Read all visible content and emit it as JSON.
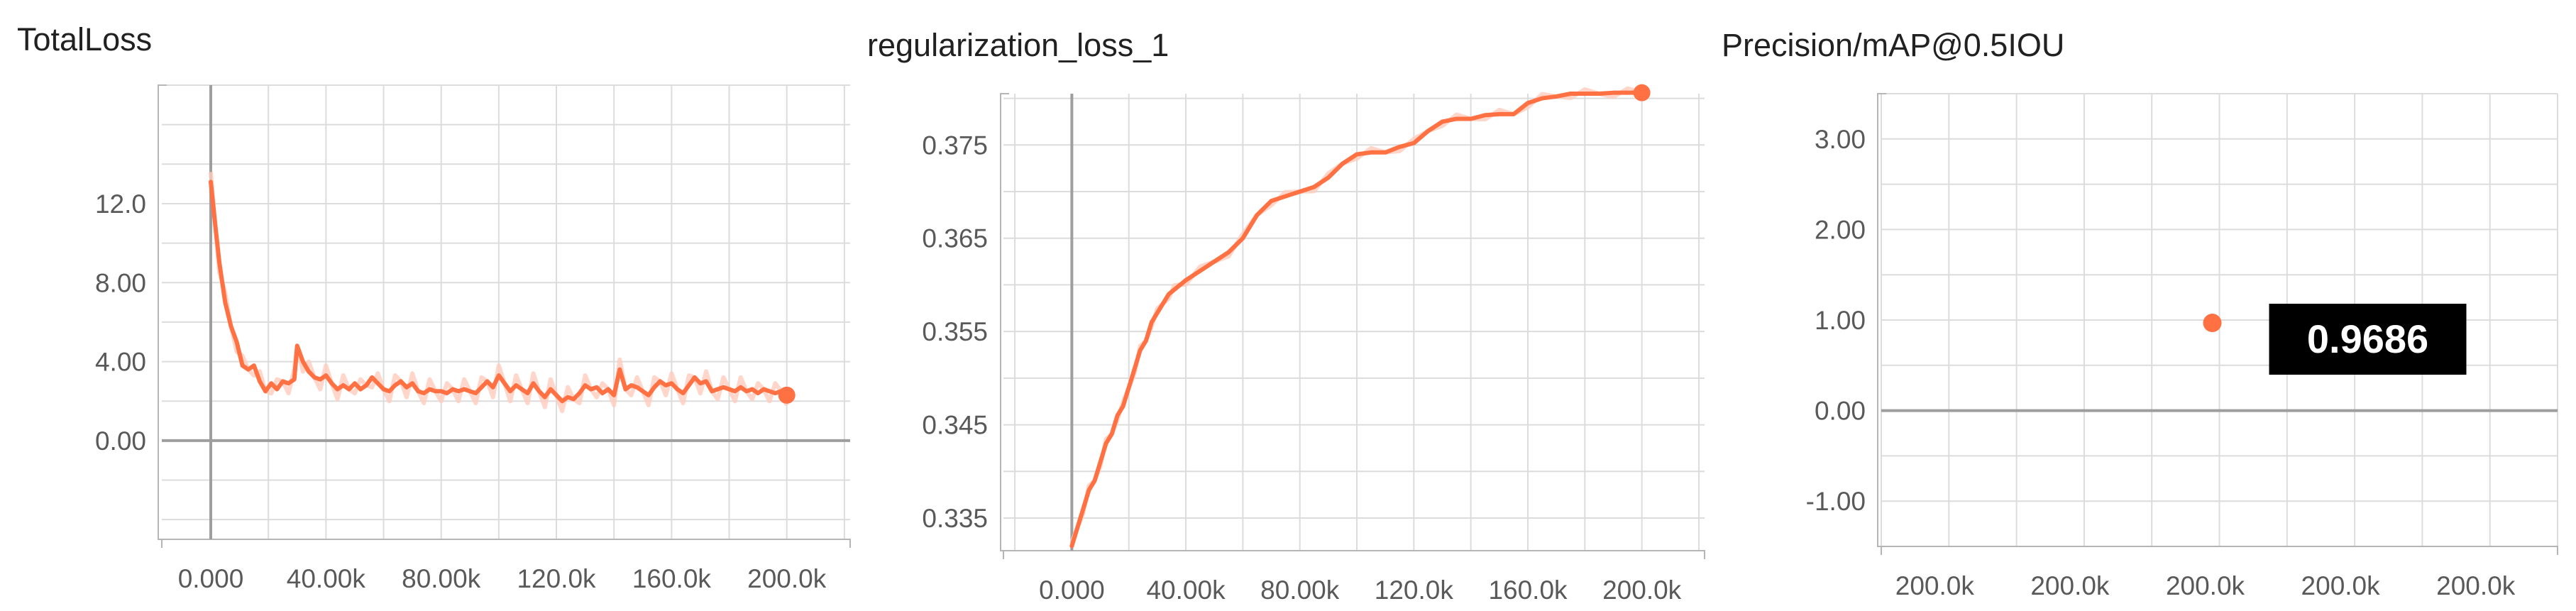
{
  "colors": {
    "series": "#ff7043",
    "raw": "#ffccbc",
    "grid": "#dcdcdc",
    "axis": "#9e9e9e"
  },
  "chart_data": [
    {
      "type": "line",
      "title": "TotalLoss",
      "xlabel": "",
      "ylabel": "",
      "xlim": [
        -17000,
        222000
      ],
      "ylim": [
        -5,
        18
      ],
      "grid": true,
      "yticks": [
        0,
        4,
        8,
        12
      ],
      "ytick_labels": [
        "0.00",
        "4.00",
        "8.00",
        "12.0"
      ],
      "xticks": [
        0,
        40000,
        80000,
        120000,
        160000,
        200000
      ],
      "xtick_labels": [
        "0.000",
        "40.00k",
        "80.00k",
        "120.0k",
        "160.0k",
        "200.0k"
      ],
      "series": [
        {
          "x": [
            0,
            1500,
            3000,
            5000,
            7000,
            9000,
            11000,
            13000,
            15000,
            17000,
            19000,
            21000,
            23000,
            25000,
            27000,
            29000,
            30000,
            32000,
            34000,
            36000,
            38000,
            40000,
            42000,
            44000,
            46000,
            48000,
            50000,
            52000,
            54000,
            56000,
            58000,
            60000,
            62000,
            64000,
            66000,
            68000,
            70000,
            72000,
            74000,
            76000,
            78000,
            80000,
            82000,
            84000,
            86000,
            88000,
            90000,
            92000,
            94000,
            96000,
            98000,
            100000,
            102000,
            104000,
            106000,
            108000,
            110000,
            112000,
            114000,
            116000,
            118000,
            120000,
            122000,
            124000,
            126000,
            128000,
            130000,
            132000,
            134000,
            136000,
            138000,
            140000,
            142000,
            144000,
            146000,
            148000,
            150000,
            152000,
            154000,
            156000,
            158000,
            160000,
            162000,
            164000,
            166000,
            168000,
            170000,
            172000,
            174000,
            176000,
            178000,
            180000,
            182000,
            184000,
            186000,
            188000,
            190000,
            192000,
            194000,
            196000,
            198000,
            200000
          ],
          "values": [
            13.1,
            11.0,
            9.0,
            7.0,
            5.8,
            5.0,
            3.8,
            3.6,
            3.8,
            3.0,
            2.5,
            2.9,
            2.6,
            3.0,
            2.9,
            3.1,
            4.8,
            4.0,
            3.5,
            3.2,
            3.1,
            3.3,
            2.9,
            2.6,
            2.8,
            2.6,
            2.9,
            2.6,
            2.8,
            3.2,
            2.9,
            2.6,
            2.5,
            2.8,
            3.0,
            2.7,
            2.9,
            2.5,
            2.4,
            2.6,
            2.5,
            2.5,
            2.4,
            2.6,
            2.5,
            2.6,
            2.5,
            2.4,
            2.7,
            3.0,
            2.7,
            3.3,
            2.9,
            2.5,
            2.8,
            2.6,
            2.4,
            2.9,
            2.5,
            2.2,
            2.6,
            2.3,
            2.0,
            2.2,
            2.1,
            2.4,
            2.8,
            2.6,
            2.7,
            2.4,
            2.6,
            2.3,
            3.6,
            2.6,
            2.8,
            2.7,
            2.5,
            2.3,
            2.7,
            3.0,
            2.8,
            2.9,
            2.6,
            2.4,
            2.8,
            3.2,
            2.9,
            3.0,
            2.5,
            2.6,
            2.7,
            2.6,
            2.5,
            2.7,
            2.5,
            2.6,
            2.4,
            2.6,
            2.5,
            2.4,
            2.5,
            2.3
          ]
        }
      ]
    },
    {
      "type": "line",
      "title": "regularization_loss_1",
      "xlabel": "",
      "ylabel": "",
      "xlim": [
        -24000,
        222000
      ],
      "ylim": [
        0.3315,
        0.3805
      ],
      "grid": true,
      "yticks": [
        0.335,
        0.345,
        0.355,
        0.365,
        0.375
      ],
      "ytick_labels": [
        "0.335",
        "0.345",
        "0.355",
        "0.365",
        "0.375"
      ],
      "xticks": [
        0,
        40000,
        80000,
        120000,
        160000,
        200000
      ],
      "xtick_labels": [
        "0.000",
        "40.00k",
        "80.00k",
        "120.0k",
        "160.0k",
        "200.0k"
      ],
      "series": [
        {
          "x": [
            0,
            2000,
            4000,
            6000,
            8000,
            10000,
            12000,
            14000,
            16000,
            18000,
            20000,
            22000,
            24000,
            26000,
            28000,
            30000,
            32000,
            34000,
            36000,
            38000,
            40000,
            45000,
            50000,
            55000,
            60000,
            65000,
            70000,
            75000,
            80000,
            85000,
            90000,
            95000,
            100000,
            105000,
            110000,
            115000,
            120000,
            125000,
            130000,
            135000,
            140000,
            145000,
            150000,
            155000,
            160000,
            165000,
            170000,
            175000,
            180000,
            185000,
            190000,
            195000,
            200000
          ],
          "values": [
            0.332,
            0.334,
            0.336,
            0.338,
            0.339,
            0.341,
            0.343,
            0.344,
            0.346,
            0.347,
            0.349,
            0.351,
            0.353,
            0.354,
            0.356,
            0.357,
            0.358,
            0.359,
            0.3595,
            0.36,
            0.3605,
            0.3615,
            0.3625,
            0.3635,
            0.365,
            0.3675,
            0.369,
            0.3695,
            0.37,
            0.3705,
            0.3715,
            0.373,
            0.374,
            0.3742,
            0.3742,
            0.3748,
            0.3752,
            0.3765,
            0.3775,
            0.3778,
            0.3778,
            0.3782,
            0.3783,
            0.3783,
            0.3795,
            0.38,
            0.3802,
            0.3805,
            0.3805,
            0.3805,
            0.3806,
            0.3806,
            0.3806
          ]
        }
      ]
    },
    {
      "type": "scatter",
      "title": "Precision/mAP@0.5IOU",
      "xlabel": "",
      "ylabel": "",
      "ylim": [
        -1.5,
        3.5
      ],
      "grid": true,
      "yticks": [
        -1,
        0,
        1,
        2,
        3
      ],
      "ytick_labels": [
        "-1.00",
        "0.00",
        "1.00",
        "2.00",
        "3.00"
      ],
      "xtick_labels": [
        "200.0k",
        "200.0k",
        "200.0k",
        "200.0k",
        "200.0k"
      ],
      "series": [
        {
          "x": [
            200000
          ],
          "values": [
            0.9686
          ]
        }
      ],
      "tooltip": "0.9686"
    }
  ]
}
